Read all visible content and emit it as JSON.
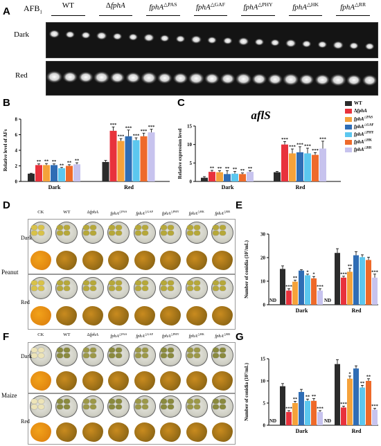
{
  "figure_letters": {
    "A": "A",
    "B": "B",
    "C": "C",
    "D": "D",
    "E": "E",
    "F": "F",
    "G": "G"
  },
  "gel": {
    "afb_label": "AFB",
    "afb_sub": "1",
    "rows": [
      "Dark",
      "Red"
    ],
    "strains": [
      "WT",
      "ΔfphA",
      "fphA△PAS",
      "fphA△GAF",
      "fphA△PHY",
      "fphA△HK",
      "fphA△RR"
    ]
  },
  "legend": {
    "entries": [
      {
        "label": "WT",
        "color": "#2b2b2b"
      },
      {
        "label": "ΔfphA",
        "color": "#e8323c"
      },
      {
        "label": "fphA△PAS",
        "color": "#f5a23a"
      },
      {
        "label": "fphA△GAF",
        "color": "#2f6db5"
      },
      {
        "label": "fphA△PHY",
        "color": "#5cc7ef"
      },
      {
        "label": "fphA△HK",
        "color": "#ee6a2a"
      },
      {
        "label": "fphA△RR",
        "color": "#c7c3ee"
      }
    ]
  },
  "plates": {
    "columns": [
      "CK",
      "WT",
      "ΔfphA",
      "fphA△PAS",
      "fphA△GAF",
      "fphA△PHY",
      "fphA△HK",
      "fphA△RR"
    ],
    "peanut_label": "Peanut",
    "maize_label": "Maize",
    "rows": [
      "Dark",
      "Red"
    ]
  },
  "chart_data": [
    {
      "panel": "B",
      "type": "bar",
      "categories": [
        "Dark",
        "Red"
      ],
      "ylabel": "Relative level of AFs",
      "ylim": [
        0,
        8
      ],
      "yticks": [
        0,
        2,
        4,
        6,
        8
      ],
      "series": [
        {
          "name": "WT",
          "values": [
            1.0,
            2.5
          ],
          "err": [
            0.05,
            0.2
          ],
          "sig": [
            "",
            ""
          ]
        },
        {
          "name": "ΔfphA",
          "values": [
            2.1,
            6.5
          ],
          "err": [
            0.15,
            0.5
          ],
          "sig": [
            "**",
            "***"
          ]
        },
        {
          "name": "fphA△PAS",
          "values": [
            2.1,
            5.2
          ],
          "err": [
            0.2,
            0.3
          ],
          "sig": [
            "**",
            "***"
          ]
        },
        {
          "name": "fphA△GAF",
          "values": [
            2.1,
            5.8
          ],
          "err": [
            0.15,
            0.8
          ],
          "sig": [
            "**",
            "***"
          ]
        },
        {
          "name": "fphA△PHY",
          "values": [
            1.7,
            5.3
          ],
          "err": [
            0.1,
            0.3
          ],
          "sig": [
            "**",
            "***"
          ]
        },
        {
          "name": "fphA△HK",
          "values": [
            2.0,
            5.8
          ],
          "err": [
            0.15,
            0.4
          ],
          "sig": [
            "**",
            "***"
          ]
        },
        {
          "name": "fphA△RR",
          "values": [
            2.2,
            6.3
          ],
          "err": [
            0.2,
            0.4
          ],
          "sig": [
            "**",
            "***"
          ]
        }
      ]
    },
    {
      "panel": "C",
      "type": "bar",
      "title": "aflS",
      "categories": [
        "Dark",
        "Red"
      ],
      "ylabel": "Relative expression level",
      "ylim": [
        0,
        15
      ],
      "yticks": [
        0,
        5,
        10,
        15
      ],
      "series": [
        {
          "name": "WT",
          "values": [
            1.0,
            2.5
          ],
          "err": [
            0.3,
            0.2
          ],
          "sig": [
            "",
            ""
          ]
        },
        {
          "name": "ΔfphA",
          "values": [
            2.6,
            10.0
          ],
          "err": [
            0.4,
            0.8
          ],
          "sig": [
            "**",
            "***"
          ]
        },
        {
          "name": "fphA△PAS",
          "values": [
            2.5,
            7.6
          ],
          "err": [
            0.4,
            1.2
          ],
          "sig": [
            "**",
            "***"
          ]
        },
        {
          "name": "fphA△GAF",
          "values": [
            2.0,
            7.9
          ],
          "err": [
            0.9,
            1.5
          ],
          "sig": [
            "**",
            "***"
          ]
        },
        {
          "name": "fphA△PHY",
          "values": [
            2.1,
            7.6
          ],
          "err": [
            0.6,
            1.4
          ],
          "sig": [
            "**",
            "***"
          ]
        },
        {
          "name": "fphA△HK",
          "values": [
            2.0,
            7.2
          ],
          "err": [
            0.3,
            0.6
          ],
          "sig": [
            "**",
            "***"
          ]
        },
        {
          "name": "fphA△RR",
          "values": [
            2.6,
            8.9
          ],
          "err": [
            0.3,
            2.0
          ],
          "sig": [
            "**",
            "***"
          ]
        }
      ]
    },
    {
      "panel": "E",
      "type": "bar",
      "categories": [
        "Dark",
        "Red"
      ],
      "ylabel": "Number of conidia (10⁷/mL)",
      "ylim": [
        0,
        30
      ],
      "yticks": [
        0,
        10,
        20,
        30
      ],
      "nd_label": "ND",
      "series": [
        {
          "name": "WT",
          "values": [
            15.2,
            22.0
          ],
          "err": [
            1.3,
            1.8
          ],
          "sig": [
            "",
            ""
          ]
        },
        {
          "name": "ΔfphA",
          "values": [
            6.0,
            11.5
          ],
          "err": [
            0.8,
            0.6
          ],
          "sig": [
            "***",
            "***"
          ]
        },
        {
          "name": "fphA△PAS",
          "values": [
            9.8,
            14.0
          ],
          "err": [
            0.6,
            1.5
          ],
          "sig": [
            "**",
            "**"
          ]
        },
        {
          "name": "fphA△GAF",
          "values": [
            14.5,
            21.0
          ],
          "err": [
            0.4,
            1.5
          ],
          "sig": [
            "",
            ""
          ]
        },
        {
          "name": "fphA△PHY",
          "values": [
            12.5,
            20.2
          ],
          "err": [
            0.5,
            1.0
          ],
          "sig": [
            "*",
            ""
          ]
        },
        {
          "name": "fphA△HK",
          "values": [
            11.2,
            19.0
          ],
          "err": [
            0.8,
            1.2
          ],
          "sig": [
            "*",
            ""
          ]
        },
        {
          "name": "fphA△RR",
          "values": [
            6.0,
            11.5
          ],
          "err": [
            0.8,
            1.5
          ],
          "sig": [
            "***",
            "***"
          ]
        }
      ]
    },
    {
      "panel": "G",
      "type": "bar",
      "categories": [
        "Dark",
        "Red"
      ],
      "ylabel": "Number of conidia (10⁷/mL)",
      "ylim": [
        0,
        15
      ],
      "yticks": [
        0,
        5,
        10,
        15
      ],
      "nd_label": "ND",
      "series": [
        {
          "name": "WT",
          "values": [
            8.8,
            13.8
          ],
          "err": [
            0.6,
            1.0
          ],
          "sig": [
            "",
            ""
          ]
        },
        {
          "name": "ΔfphA",
          "values": [
            3.0,
            4.0
          ],
          "err": [
            0.3,
            0.3
          ],
          "sig": [
            "***",
            "***"
          ]
        },
        {
          "name": "fphA△PAS",
          "values": [
            5.0,
            10.5
          ],
          "err": [
            0.4,
            0.6
          ],
          "sig": [
            "**",
            "*"
          ]
        },
        {
          "name": "fphA△GAF",
          "values": [
            7.5,
            12.8
          ],
          "err": [
            0.6,
            0.6
          ],
          "sig": [
            "",
            ""
          ]
        },
        {
          "name": "fphA△PHY",
          "values": [
            5.5,
            8.5
          ],
          "err": [
            0.4,
            0.5
          ],
          "sig": [
            "**",
            "**"
          ]
        },
        {
          "name": "fphA△HK",
          "values": [
            5.5,
            10.0
          ],
          "err": [
            0.5,
            0.5
          ],
          "sig": [
            "**",
            "**"
          ]
        },
        {
          "name": "fphA△RR",
          "values": [
            3.0,
            3.5
          ],
          "err": [
            0.3,
            0.3
          ],
          "sig": [
            "***",
            "***"
          ]
        }
      ]
    }
  ]
}
